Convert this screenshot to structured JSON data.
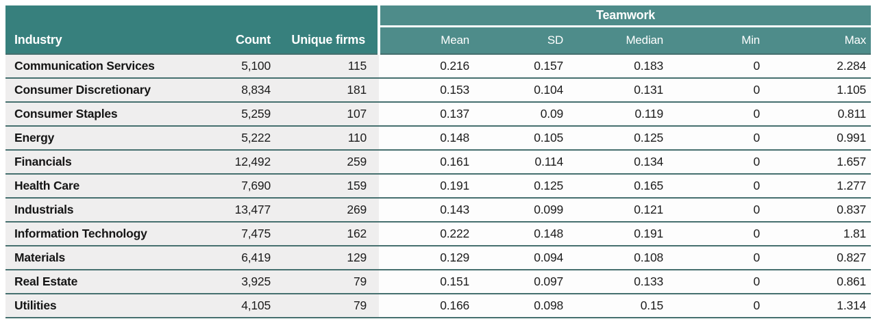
{
  "colors": {
    "header_dark_teal": "#37807d",
    "header_light_teal": "#4e8c8a",
    "row_divider_teal": "#456f6e",
    "left_section_bg": "#efeeee",
    "right_section_bg": "#fdfdfd",
    "header_text": "#ffffff",
    "body_text": "#1c1c1c"
  },
  "table": {
    "group_header": "Teamwork",
    "columns": {
      "industry": "Industry",
      "count": "Count",
      "unique_firms": "Unique firms",
      "mean": "Mean",
      "sd": "SD",
      "median": "Median",
      "min": "Min",
      "max": "Max"
    },
    "rows": [
      {
        "industry": "Communication Services",
        "count": "5,100",
        "unique_firms": "115",
        "mean": "0.216",
        "sd": "0.157",
        "median": "0.183",
        "min": "0",
        "max": "2.284"
      },
      {
        "industry": "Consumer Discretionary",
        "count": "8,834",
        "unique_firms": "181",
        "mean": "0.153",
        "sd": "0.104",
        "median": "0.131",
        "min": "0",
        "max": "1.105"
      },
      {
        "industry": "Consumer Staples",
        "count": "5,259",
        "unique_firms": "107",
        "mean": "0.137",
        "sd": "0.09",
        "median": "0.119",
        "min": "0",
        "max": "0.811"
      },
      {
        "industry": "Energy",
        "count": "5,222",
        "unique_firms": "110",
        "mean": "0.148",
        "sd": "0.105",
        "median": "0.125",
        "min": "0",
        "max": "0.991"
      },
      {
        "industry": "Financials",
        "count": "12,492",
        "unique_firms": "259",
        "mean": "0.161",
        "sd": "0.114",
        "median": "0.134",
        "min": "0",
        "max": "1.657"
      },
      {
        "industry": "Health Care",
        "count": "7,690",
        "unique_firms": "159",
        "mean": "0.191",
        "sd": "0.125",
        "median": "0.165",
        "min": "0",
        "max": "1.277"
      },
      {
        "industry": "Industrials",
        "count": "13,477",
        "unique_firms": "269",
        "mean": "0.143",
        "sd": "0.099",
        "median": "0.121",
        "min": "0",
        "max": "0.837"
      },
      {
        "industry": "Information Technology",
        "count": "7,475",
        "unique_firms": "162",
        "mean": "0.222",
        "sd": "0.148",
        "median": "0.191",
        "min": "0",
        "max": "1.81"
      },
      {
        "industry": "Materials",
        "count": "6,419",
        "unique_firms": "129",
        "mean": "0.129",
        "sd": "0.094",
        "median": "0.108",
        "min": "0",
        "max": "0.827"
      },
      {
        "industry": "Real Estate",
        "count": "3,925",
        "unique_firms": "79",
        "mean": "0.151",
        "sd": "0.097",
        "median": "0.133",
        "min": "0",
        "max": "0.861"
      },
      {
        "industry": "Utilities",
        "count": "4,105",
        "unique_firms": "79",
        "mean": "0.166",
        "sd": "0.098",
        "median": "0.15",
        "min": "0",
        "max": "1.314"
      }
    ]
  }
}
